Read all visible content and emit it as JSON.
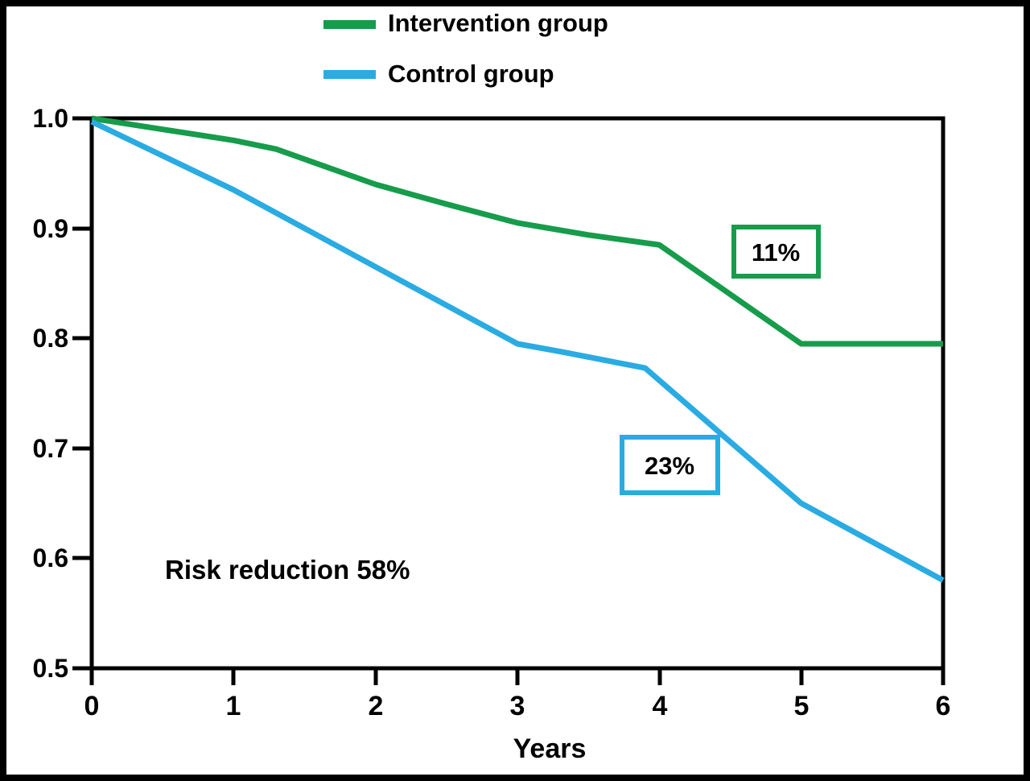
{
  "chart_data": {
    "type": "line",
    "title": "",
    "xlabel": "Years",
    "ylabel": "",
    "xlim": [
      0,
      6
    ],
    "ylim": [
      0.5,
      1.0
    ],
    "grid": false,
    "legend_position": "top",
    "x_tick_labels": [
      "0",
      "1",
      "2",
      "3",
      "4",
      "5",
      "6"
    ],
    "y_tick_labels": [
      "1.0",
      "0.9",
      "0.8",
      "0.7",
      "0.6",
      "0.5"
    ],
    "series": [
      {
        "name": "Intervention group",
        "color": "#169c4b",
        "points": [
          [
            0,
            1.0
          ],
          [
            0.5,
            0.99
          ],
          [
            1,
            0.98
          ],
          [
            1.3,
            0.972
          ],
          [
            2,
            0.94
          ],
          [
            2.5,
            0.922
          ],
          [
            3,
            0.905
          ],
          [
            3.5,
            0.894
          ],
          [
            4,
            0.885
          ],
          [
            5,
            0.795
          ],
          [
            6,
            0.795
          ]
        ]
      },
      {
        "name": "Control group",
        "color": "#2aabe2",
        "points": [
          [
            0,
            0.997
          ],
          [
            1,
            0.935
          ],
          [
            2,
            0.865
          ],
          [
            3,
            0.795
          ],
          [
            3.3,
            0.788
          ],
          [
            3.9,
            0.773
          ],
          [
            5,
            0.65
          ],
          [
            6,
            0.58
          ]
        ]
      }
    ],
    "annotations": {
      "intervention_drop": {
        "text": "11%"
      },
      "control_drop": {
        "text": "23%"
      },
      "risk_reduction": {
        "text": "Risk reduction 58%"
      }
    }
  },
  "colors": {
    "intervention": "#169c4b",
    "control": "#2aabe2",
    "axis": "#000000",
    "background": "#ffffff"
  }
}
